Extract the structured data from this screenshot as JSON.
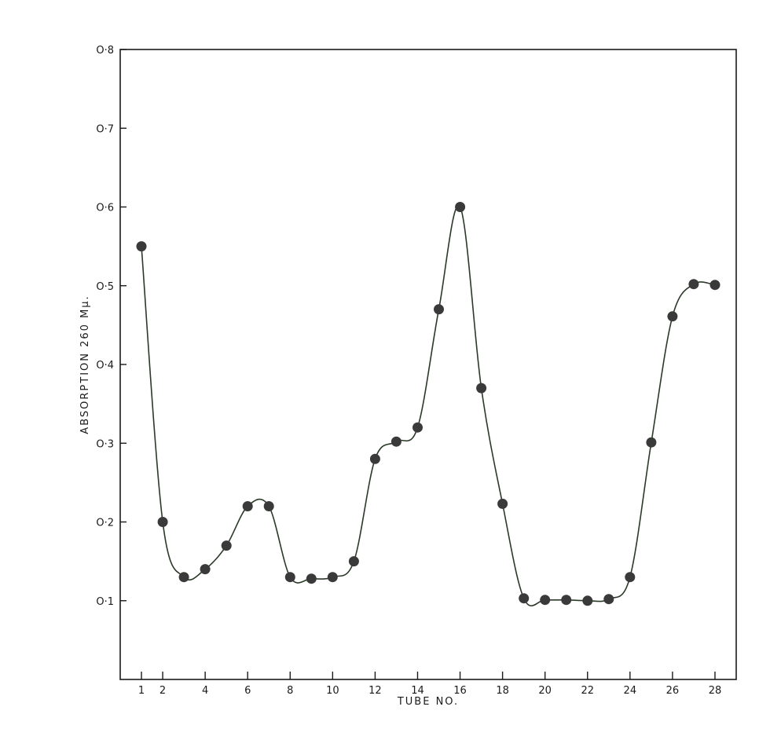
{
  "chart_data": {
    "type": "line",
    "xlabel": "TUBE NO.",
    "ylabel": "ABSORPTION 260 Mμ.",
    "xlim": [
      0,
      29
    ],
    "ylim": [
      0,
      0.8
    ],
    "x_ticks": [
      1,
      2,
      4,
      6,
      8,
      10,
      12,
      14,
      16,
      18,
      20,
      22,
      24,
      26,
      28
    ],
    "x_tick_labels": [
      "1",
      "2",
      "4",
      "6",
      "8",
      "10",
      "12",
      "14",
      "16",
      "18",
      "20",
      "22",
      "24",
      "26",
      "28"
    ],
    "y_ticks": [
      0.1,
      0.2,
      0.3,
      0.4,
      0.5,
      0.6,
      0.7,
      0.8
    ],
    "y_tick_labels": [
      "O·1",
      "O·2",
      "O·3",
      "O·4",
      "O·5",
      "O·6",
      "O·7",
      "O·8"
    ],
    "grid": false,
    "series": [
      {
        "x": [
          1,
          2,
          3,
          4,
          5,
          6,
          7,
          8,
          9,
          10,
          11,
          12,
          13,
          14,
          15,
          16,
          17,
          18,
          19,
          20,
          21,
          22,
          23,
          24,
          25,
          26,
          27,
          28
        ],
        "y": [
          0.55,
          0.2,
          0.13,
          0.14,
          0.17,
          0.22,
          0.22,
          0.13,
          0.128,
          0.13,
          0.15,
          0.28,
          0.302,
          0.32,
          0.47,
          0.6,
          0.37,
          0.223,
          0.103,
          0.101,
          0.101,
          0.1,
          0.102,
          0.13,
          0.301,
          0.461,
          0.502,
          0.501
        ]
      }
    ]
  },
  "colors": {
    "axis": "#1a1a1a",
    "line": "#2b3a28",
    "marker": "#3a3a3a"
  }
}
